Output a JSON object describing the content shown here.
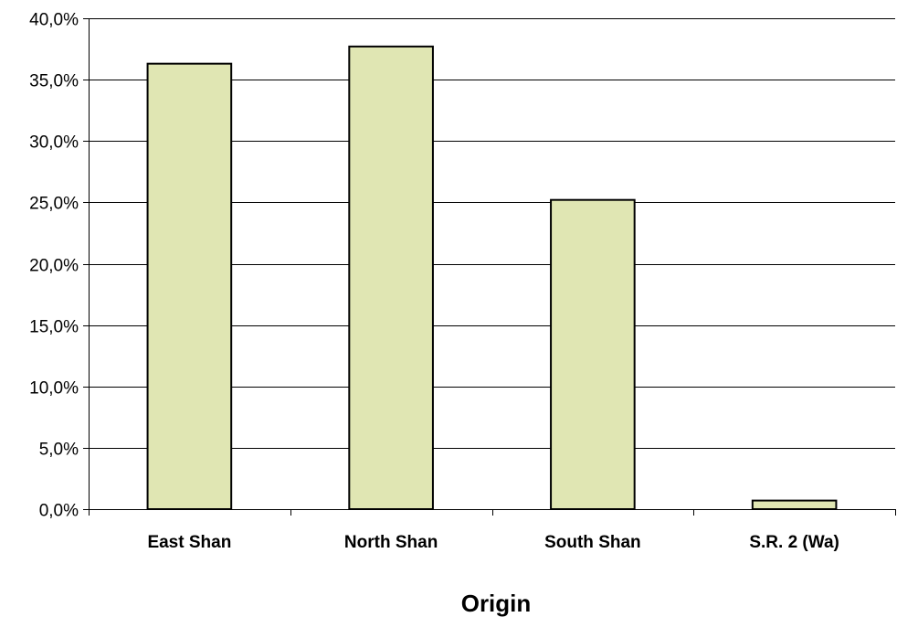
{
  "chart_data": {
    "type": "bar",
    "categories": [
      "East Shan",
      "North Shan",
      "South Shan",
      "S.R. 2 (Wa)"
    ],
    "values": [
      36.3,
      37.7,
      25.2,
      0.7
    ],
    "title": "",
    "xlabel": "Origin",
    "ylabel": "",
    "ylim": [
      0,
      40
    ],
    "y_ticks": [
      0,
      5,
      10,
      15,
      20,
      25,
      30,
      35,
      40
    ],
    "y_tick_labels": [
      "0,0%",
      "5,0%",
      "10,0%",
      "15,0%",
      "20,0%",
      "25,0%",
      "30,0%",
      "35,0%",
      "40,0%"
    ],
    "grid": true,
    "legend": "none",
    "bar_color": "#E0E6B3",
    "bar_edge_color": "#000000",
    "grid_color": "#000000"
  }
}
